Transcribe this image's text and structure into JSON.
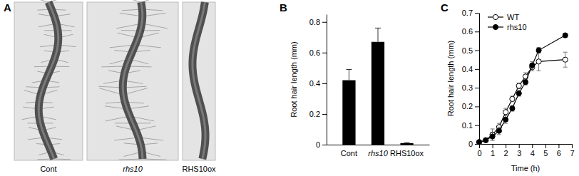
{
  "panel_a": {
    "label": "A",
    "captions": [
      "Cont",
      "rhs10",
      "RHS10ox"
    ]
  },
  "chart_data": [
    {
      "type": "bar",
      "title": "B",
      "categories": [
        "Cont",
        "rhs10",
        "RHS10ox"
      ],
      "values": [
        0.42,
        0.67,
        0.01
      ],
      "errors": [
        0.07,
        0.09,
        0.003
      ],
      "color": "#000000",
      "y_label": "Root hair length (mm)",
      "ylim": [
        0,
        0.85
      ],
      "yticks": [
        0,
        0.2,
        0.4,
        0.6,
        0.8
      ]
    },
    {
      "type": "line",
      "title": "C",
      "x": [
        0,
        0.5,
        1,
        1.5,
        2,
        2.5,
        3,
        3.5,
        4,
        4.5,
        6.5
      ],
      "series": [
        {
          "name": "WT",
          "color": "#000000",
          "marker": "open_circle",
          "values": [
            0.01,
            0.02,
            0.05,
            0.09,
            0.17,
            0.24,
            0.31,
            0.36,
            0.41,
            0.44,
            0.45
          ],
          "errors": [
            0.005,
            0.01,
            0.03,
            0.02,
            0.02,
            0.015,
            0.015,
            0.02,
            0.02,
            0.05,
            0.04
          ]
        },
        {
          "name": "rhs10",
          "color": "#000000",
          "marker": "filled_circle",
          "values": [
            0.01,
            0.02,
            0.04,
            0.07,
            0.13,
            0.19,
            0.27,
            0.33,
            0.42,
            0.5,
            0.58
          ],
          "errors": [
            0.005,
            0.01,
            0.02,
            0.02,
            0.02,
            0.015,
            0.015,
            0.015,
            0.02,
            0.015,
            0.01
          ]
        }
      ],
      "x_label": "Time (h)",
      "y_label": "Root hair length (mm)",
      "xlim": [
        0,
        7
      ],
      "xticks": [
        0,
        1,
        2,
        3,
        4,
        5,
        6,
        7
      ],
      "ylim": [
        0,
        0.7
      ],
      "yticks": [
        0,
        0.1,
        0.2,
        0.3,
        0.4,
        0.5,
        0.6,
        0.7
      ],
      "legend": "top-left"
    }
  ]
}
